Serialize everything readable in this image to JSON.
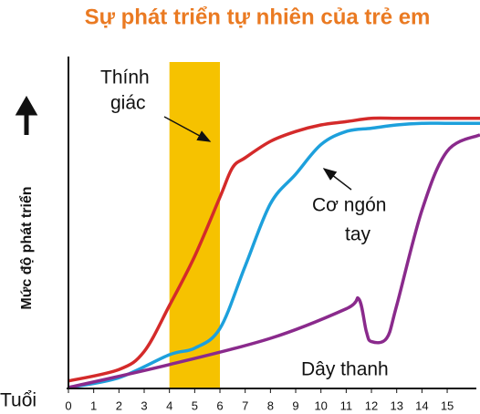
{
  "chart_data": {
    "type": "line",
    "title": "Sự phát triển tự nhiên của trẻ em",
    "y_label": "Mức độ phát triển",
    "x_label": "Tuổi",
    "xlim": [
      0,
      16.3
    ],
    "ylim": [
      0,
      100
    ],
    "xticks": [
      0,
      1,
      2,
      3,
      4,
      5,
      6,
      7,
      8,
      9,
      10,
      11,
      12,
      13,
      14,
      15
    ],
    "highlight": {
      "from": 4,
      "to": 6,
      "color": "#f6c200"
    },
    "series": [
      {
        "color": "#d42a2a",
        "x": [
          0,
          2,
          3,
          4,
          5,
          6,
          6.5,
          7,
          8,
          9,
          10,
          11,
          12,
          13,
          14,
          15,
          16.3
        ],
        "values": [
          2,
          5.5,
          11,
          25,
          40,
          58,
          67,
          70,
          75,
          78,
          80,
          81,
          82,
          82,
          82,
          82,
          82
        ]
      },
      {
        "color": "#1da0dc",
        "x": [
          0,
          2,
          4,
          5,
          6,
          7,
          8,
          9,
          10,
          11,
          12,
          13,
          14,
          15,
          16.3
        ],
        "values": [
          0,
          3,
          10,
          12,
          18,
          37,
          56,
          65,
          74,
          78,
          79,
          80,
          80.5,
          80.5,
          80.5
        ]
      },
      {
        "color": "#8a2a8c",
        "x": [
          0,
          4,
          8,
          11,
          11.5,
          11.8,
          12,
          12.6,
          13,
          14,
          15,
          16.3
        ],
        "values": [
          0,
          7,
          15,
          24,
          27,
          17,
          14,
          15,
          25,
          54,
          72,
          77
        ]
      }
    ],
    "annotations": [
      {
        "lines": [
          "Thính",
          "giác"
        ]
      },
      {
        "lines": [
          "Cơ ngón",
          "tay"
        ]
      },
      {
        "lines": [
          "Dây thanh"
        ]
      }
    ]
  }
}
